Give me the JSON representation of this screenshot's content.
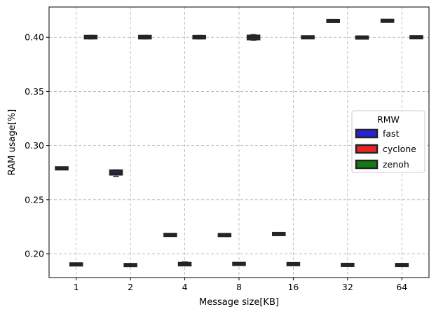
{
  "chart_data": {
    "type": "box",
    "xlabel": "Message size[KB]",
    "ylabel": "RAM usage[%]",
    "categories": [
      "1",
      "2",
      "4",
      "8",
      "16",
      "32",
      "64"
    ],
    "ylim": [
      0.178,
      0.428
    ],
    "yticks": [
      0.2,
      0.25,
      0.3,
      0.35,
      0.4
    ],
    "ytick_labels": [
      "0.20",
      "0.25",
      "0.30",
      "0.35",
      "0.40"
    ],
    "grid": true,
    "legend": {
      "title": "RMW",
      "position": "center-right"
    },
    "series": [
      {
        "name": "fast",
        "color": "#2424d6",
        "boxes": [
          {
            "category": "1",
            "min": 0.2778,
            "q1": 0.2783,
            "median": 0.2788,
            "q3": 0.2795,
            "max": 0.2798
          },
          {
            "category": "2",
            "min": 0.2715,
            "q1": 0.2732,
            "median": 0.2748,
            "q3": 0.277,
            "max": 0.2775
          },
          {
            "category": "4",
            "min": 0.2168,
            "q1": 0.217,
            "median": 0.2174,
            "q3": 0.2178,
            "max": 0.218
          },
          {
            "category": "8",
            "min": 0.2166,
            "q1": 0.2169,
            "median": 0.2173,
            "q3": 0.2177,
            "max": 0.2179
          },
          {
            "category": "16",
            "min": 0.2176,
            "q1": 0.2178,
            "median": 0.2182,
            "q3": 0.2186,
            "max": 0.2188
          },
          {
            "category": "32",
            "min": 0.4138,
            "q1": 0.4142,
            "median": 0.415,
            "q3": 0.416,
            "max": 0.4166
          },
          {
            "category": "64",
            "min": 0.4146,
            "q1": 0.4148,
            "median": 0.4152,
            "q3": 0.4157,
            "max": 0.4159
          }
        ]
      },
      {
        "name": "cyclone",
        "color": "#e82424",
        "boxes": [
          {
            "category": "1",
            "min": 0.1892,
            "q1": 0.1895,
            "median": 0.1902,
            "q3": 0.1908,
            "max": 0.191
          },
          {
            "category": "2",
            "min": 0.1888,
            "q1": 0.189,
            "median": 0.1895,
            "q3": 0.1901,
            "max": 0.1903
          },
          {
            "category": "4",
            "min": 0.1888,
            "q1": 0.1893,
            "median": 0.1903,
            "q3": 0.1915,
            "max": 0.1925
          },
          {
            "category": "8",
            "min": 0.1893,
            "q1": 0.1897,
            "median": 0.1905,
            "q3": 0.1915,
            "max": 0.1918
          },
          {
            "category": "16",
            "min": 0.1897,
            "q1": 0.19,
            "median": 0.1904,
            "q3": 0.1908,
            "max": 0.191
          },
          {
            "category": "32",
            "min": 0.189,
            "q1": 0.1892,
            "median": 0.1897,
            "q3": 0.1902,
            "max": 0.1905
          },
          {
            "category": "64",
            "min": 0.189,
            "q1": 0.1892,
            "median": 0.1896,
            "q3": 0.19,
            "max": 0.1902
          }
        ]
      },
      {
        "name": "zenoh",
        "color": "#137a13",
        "boxes": [
          {
            "category": "1",
            "min": 0.3985,
            "q1": 0.399,
            "median": 0.4002,
            "q3": 0.4013,
            "max": 0.4018
          },
          {
            "category": "2",
            "min": 0.3985,
            "q1": 0.399,
            "median": 0.4002,
            "q3": 0.4013,
            "max": 0.4018
          },
          {
            "category": "4",
            "min": 0.3985,
            "q1": 0.399,
            "median": 0.4,
            "q3": 0.4012,
            "max": 0.4018
          },
          {
            "category": "8",
            "min": 0.3973,
            "q1": 0.3982,
            "median": 0.4,
            "q3": 0.4015,
            "max": 0.4025
          },
          {
            "category": "16",
            "min": 0.3993,
            "q1": 0.3995,
            "median": 0.4,
            "q3": 0.4005,
            "max": 0.4007
          },
          {
            "category": "32",
            "min": 0.399,
            "q1": 0.3993,
            "median": 0.3998,
            "q3": 0.4003,
            "max": 0.4005
          },
          {
            "category": "64",
            "min": 0.399,
            "q1": 0.3993,
            "median": 0.4,
            "q3": 0.4008,
            "max": 0.4012
          }
        ]
      }
    ]
  }
}
